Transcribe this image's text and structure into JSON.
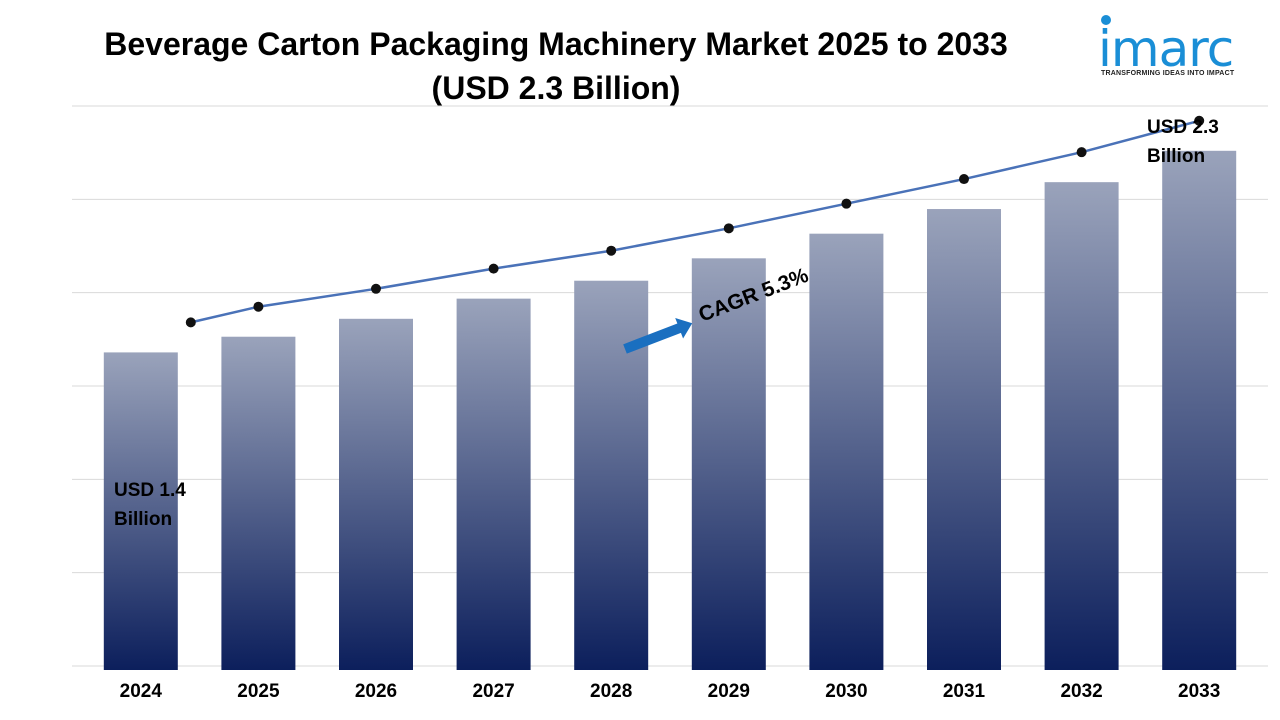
{
  "title": {
    "line1": "Beverage Carton Packaging Machinery Market 2025 to 2033",
    "line2": "(USD 2.3 Billion)"
  },
  "logo": {
    "wordmark": "imarc",
    "tagline": "TRANSFORMING IDEAS INTO IMPACT",
    "color": "#1a8ed6"
  },
  "annotations": {
    "start_line1": "USD 1.4",
    "start_line2": "Billion",
    "end_line1": "USD 2.3",
    "end_line2": "Billion",
    "cagr": "CAGR 5.3%"
  },
  "colors": {
    "bar_top": "#9aa3bb",
    "bar_bottom": "#0c1f5c",
    "line": "#4a72b8",
    "marker": "#111111",
    "arrow": "#1a6fc0",
    "grid": "#d9d9d9"
  },
  "chart_data": {
    "type": "bar",
    "title": "Beverage Carton Packaging Machinery Market 2025 to 2033",
    "subtitle": "(USD 2.3 Billion)",
    "categories": [
      "2024",
      "2025",
      "2026",
      "2027",
      "2028",
      "2029",
      "2030",
      "2031",
      "2032",
      "2033"
    ],
    "values": [
      1.4,
      1.47,
      1.55,
      1.64,
      1.72,
      1.82,
      1.93,
      2.04,
      2.16,
      2.3
    ],
    "overlay_line_values": [
      1.4,
      1.47,
      1.55,
      1.64,
      1.72,
      1.82,
      1.93,
      2.04,
      2.16,
      2.3
    ],
    "unit": "USD Billion",
    "cagr": "5.3%",
    "ylim": [
      0,
      2.5
    ],
    "grid": true,
    "y_axis_labels_shown": false,
    "legend": "none"
  }
}
